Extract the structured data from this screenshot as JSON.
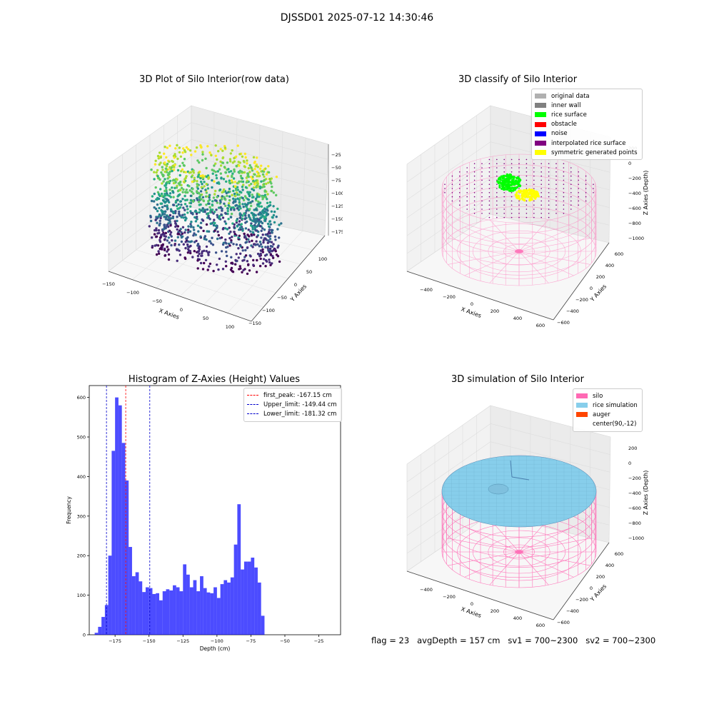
{
  "suptitle": "DJSSD01 2025-07-12 14:30:46",
  "chart_data": [
    {
      "type": "scatter",
      "title": "3D Plot of Silo Interior(row data)",
      "xlabel": "X Axies",
      "ylabel": "Y Axies",
      "zlabel": "Z Axies (Depth)",
      "x_ticks": [
        "−150",
        "−100",
        "−50",
        "0",
        "50",
        "100"
      ],
      "y_ticks": [
        "100",
        "50",
        "0",
        "−50",
        "−100",
        "−150"
      ],
      "z_ticks": [
        "−25",
        "−50",
        "−75",
        "−100",
        "−125",
        "−150",
        "−175"
      ],
      "colormap": "viridis"
    },
    {
      "type": "scatter",
      "title": "3D classify of Silo Interior",
      "xlabel": "X Axies",
      "ylabel": "Y Axies",
      "zlabel": "Z Axies (Depth)",
      "x_ticks": [
        "−400",
        "−200",
        "0",
        "200",
        "400",
        "600"
      ],
      "y_ticks": [
        "600",
        "400",
        "200",
        "0",
        "−200",
        "−400",
        "−600"
      ],
      "z_ticks": [
        "200",
        "0",
        "−200",
        "−400",
        "−600",
        "−800",
        "−1000"
      ],
      "legend": [
        {
          "label": "original data",
          "color": "#b0b0b0"
        },
        {
          "label": "inner wall",
          "color": "#808080"
        },
        {
          "label": "rice surface",
          "color": "#00ff00"
        },
        {
          "label": "obstacle",
          "color": "#ff0000"
        },
        {
          "label": "noise",
          "color": "#0000ff"
        },
        {
          "label": "interpolated rice surface",
          "color": "#800080"
        },
        {
          "label": "symmetric generated points",
          "color": "#ffff00"
        }
      ]
    },
    {
      "type": "bar",
      "title": "Histogram of Z-Axies (Height) Values",
      "xlabel": "Depth (cm)",
      "ylabel": "Frequency",
      "xlim": [
        -194,
        -9
      ],
      "ylim": [
        0,
        630
      ],
      "x_ticks": [
        -175,
        -150,
        -125,
        -100,
        -75,
        -50,
        -25
      ],
      "x_tick_labels": [
        "−175",
        "−150",
        "−125",
        "−100",
        "−75",
        "−50",
        "−25"
      ],
      "y_ticks": [
        0,
        100,
        200,
        300,
        400,
        500,
        600
      ],
      "bin_start": -190,
      "bin_width": 2.5,
      "values": [
        5,
        20,
        45,
        75,
        200,
        465,
        600,
        580,
        485,
        390,
        222,
        148,
        158,
        135,
        108,
        120,
        118,
        103,
        105,
        87,
        110,
        115,
        112,
        125,
        120,
        110,
        178,
        152,
        120,
        138,
        110,
        148,
        118,
        107,
        105,
        120,
        93,
        128,
        138,
        132,
        145,
        228,
        330,
        165,
        185,
        185,
        195,
        170,
        132,
        48
      ],
      "color": "#0000ff",
      "vlines": [
        {
          "label": "first_peak: -167.15 cm",
          "x": -167.15,
          "color": "#ff0000"
        },
        {
          "label": "Upper_limit: -149.44 cm",
          "x": -149.44,
          "color": "#0000cc"
        },
        {
          "label": "Lower_limit: -181.32 cm",
          "x": -181.32,
          "color": "#0000cc"
        }
      ]
    },
    {
      "type": "scatter",
      "title": "3D simulation of Silo Interior",
      "xlabel": "X Axies",
      "ylabel": "Y Axies",
      "zlabel": "Z Axies (Depth)",
      "x_ticks": [
        "−400",
        "−200",
        "0",
        "200",
        "400",
        "600"
      ],
      "y_ticks": [
        "600",
        "400",
        "200",
        "0",
        "−200",
        "−400",
        "−600"
      ],
      "z_ticks": [
        "200",
        "0",
        "−200",
        "−400",
        "−600",
        "−800",
        "−1000"
      ],
      "legend": [
        {
          "label": "silo",
          "color": "#ff69b4"
        },
        {
          "label": "rice simulation",
          "color": "#87ceeb"
        },
        {
          "label": "auger",
          "color": "#ff4500"
        },
        {
          "label": "center(90,-12)",
          "color": ""
        }
      ]
    }
  ],
  "footer": "flag = 23   avgDepth = 157 cm   sv1 = 700~2300   sv2 = 700~2300"
}
